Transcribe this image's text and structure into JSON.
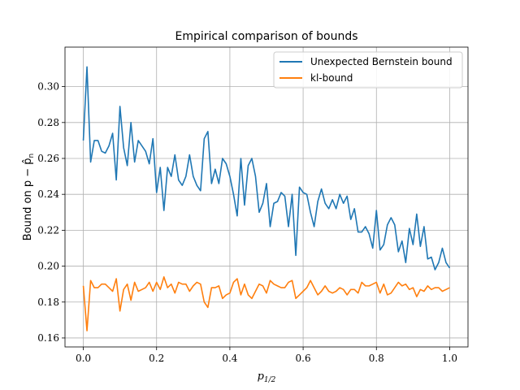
{
  "chart_data": {
    "type": "line",
    "title": "Empirical comparison of bounds",
    "xlabel": "p",
    "xlabel_sub": "1/2",
    "ylabel": "Bound on p − p̂",
    "ylabel_sub": "n",
    "xlim": [
      -0.05,
      1.05
    ],
    "ylim": [
      0.155,
      0.322
    ],
    "xticks": [
      0.0,
      0.2,
      0.4,
      0.6,
      0.8,
      1.0
    ],
    "xtick_labels": [
      "0.0",
      "0.2",
      "0.4",
      "0.6",
      "0.8",
      "1.0"
    ],
    "yticks": [
      0.16,
      0.18,
      0.2,
      0.22,
      0.24,
      0.26,
      0.28,
      0.3
    ],
    "ytick_labels": [
      "0.16",
      "0.18",
      "0.20",
      "0.22",
      "0.24",
      "0.26",
      "0.28",
      "0.30"
    ],
    "grid": true,
    "legend_position": "top-right",
    "x": [
      0.0,
      0.01,
      0.02,
      0.03,
      0.04,
      0.05,
      0.06,
      0.07,
      0.08,
      0.09,
      0.1,
      0.11,
      0.12,
      0.13,
      0.14,
      0.15,
      0.16,
      0.17,
      0.18,
      0.19,
      0.2,
      0.21,
      0.22,
      0.23,
      0.24,
      0.25,
      0.26,
      0.27,
      0.28,
      0.29,
      0.3,
      0.31,
      0.32,
      0.33,
      0.34,
      0.35,
      0.36,
      0.37,
      0.38,
      0.39,
      0.4,
      0.41,
      0.42,
      0.43,
      0.44,
      0.45,
      0.46,
      0.47,
      0.48,
      0.49,
      0.5,
      0.51,
      0.52,
      0.53,
      0.54,
      0.55,
      0.56,
      0.57,
      0.58,
      0.59,
      0.6,
      0.61,
      0.62,
      0.63,
      0.64,
      0.65,
      0.66,
      0.67,
      0.68,
      0.69,
      0.7,
      0.71,
      0.72,
      0.73,
      0.74,
      0.75,
      0.76,
      0.77,
      0.78,
      0.79,
      0.8,
      0.81,
      0.82,
      0.83,
      0.84,
      0.85,
      0.86,
      0.87,
      0.88,
      0.89,
      0.9,
      0.91,
      0.92,
      0.93,
      0.94,
      0.95,
      0.96,
      0.97,
      0.98,
      0.99,
      1.0
    ],
    "series": [
      {
        "name": "Unexpected Bernstein bound",
        "color": "#1f77b4",
        "values": [
          0.27,
          0.311,
          0.258,
          0.27,
          0.27,
          0.264,
          0.263,
          0.267,
          0.274,
          0.248,
          0.289,
          0.266,
          0.256,
          0.28,
          0.258,
          0.27,
          0.267,
          0.264,
          0.257,
          0.271,
          0.241,
          0.255,
          0.231,
          0.255,
          0.25,
          0.262,
          0.248,
          0.245,
          0.25,
          0.262,
          0.25,
          0.245,
          0.242,
          0.271,
          0.275,
          0.246,
          0.254,
          0.246,
          0.26,
          0.257,
          0.25,
          0.24,
          0.228,
          0.26,
          0.234,
          0.256,
          0.26,
          0.25,
          0.23,
          0.235,
          0.246,
          0.222,
          0.235,
          0.236,
          0.241,
          0.239,
          0.222,
          0.24,
          0.206,
          0.244,
          0.241,
          0.24,
          0.23,
          0.222,
          0.236,
          0.243,
          0.235,
          0.232,
          0.237,
          0.232,
          0.24,
          0.235,
          0.239,
          0.226,
          0.232,
          0.219,
          0.219,
          0.222,
          0.218,
          0.21,
          0.231,
          0.209,
          0.212,
          0.223,
          0.227,
          0.223,
          0.208,
          0.214,
          0.202,
          0.221,
          0.212,
          0.229,
          0.211,
          0.222,
          0.204,
          0.205,
          0.198,
          0.202,
          0.21,
          0.202,
          0.199
        ]
      },
      {
        "name": "kl-bound",
        "color": "#ff7f0e",
        "values": [
          0.189,
          0.164,
          0.192,
          0.188,
          0.188,
          0.19,
          0.19,
          0.188,
          0.186,
          0.193,
          0.175,
          0.187,
          0.19,
          0.181,
          0.191,
          0.186,
          0.187,
          0.188,
          0.191,
          0.186,
          0.191,
          0.187,
          0.194,
          0.188,
          0.19,
          0.185,
          0.191,
          0.19,
          0.19,
          0.186,
          0.189,
          0.191,
          0.19,
          0.18,
          0.177,
          0.188,
          0.188,
          0.189,
          0.182,
          0.184,
          0.185,
          0.191,
          0.193,
          0.184,
          0.19,
          0.184,
          0.182,
          0.186,
          0.19,
          0.189,
          0.185,
          0.192,
          0.19,
          0.189,
          0.188,
          0.188,
          0.191,
          0.192,
          0.182,
          0.184,
          0.186,
          0.188,
          0.192,
          0.188,
          0.184,
          0.186,
          0.189,
          0.186,
          0.185,
          0.186,
          0.188,
          0.187,
          0.184,
          0.187,
          0.187,
          0.185,
          0.191,
          0.189,
          0.189,
          0.19,
          0.191,
          0.185,
          0.19,
          0.184,
          0.185,
          0.188,
          0.191,
          0.189,
          0.19,
          0.187,
          0.188,
          0.183,
          0.187,
          0.186,
          0.189,
          0.187,
          0.188,
          0.188,
          0.186,
          0.187,
          0.188
        ]
      }
    ]
  }
}
